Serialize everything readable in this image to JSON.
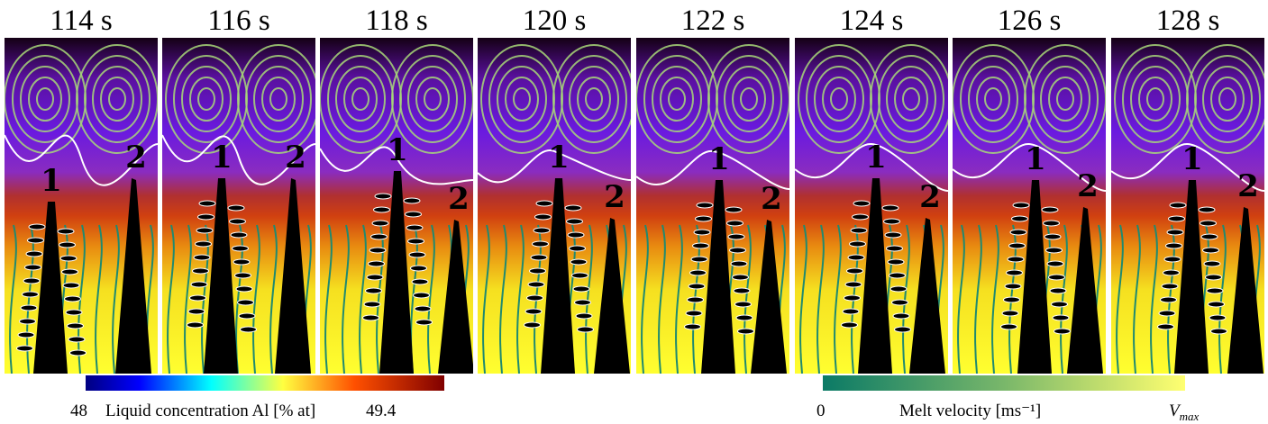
{
  "panels": [
    {
      "time": "114 s",
      "label1": "1",
      "label2": "2"
    },
    {
      "time": "116 s",
      "label1": "1",
      "label2": "2"
    },
    {
      "time": "118 s",
      "label1": "1",
      "label2": "2"
    },
    {
      "time": "120 s",
      "label1": "1",
      "label2": "2"
    },
    {
      "time": "122 s",
      "label1": "1",
      "label2": "2"
    },
    {
      "time": "124 s",
      "label1": "1",
      "label2": "2"
    },
    {
      "time": "126 s",
      "label1": "1",
      "label2": "2"
    },
    {
      "time": "128 s",
      "label1": "1",
      "label2": "2"
    }
  ],
  "colorbars": {
    "concentration": {
      "min": 48,
      "label": "Liquid concentration Al [% at]",
      "max": 49.4
    },
    "velocity": {
      "min": 0,
      "label": "Melt velocity [ms⁻¹]",
      "max_base": "V",
      "max_sub": "max"
    }
  }
}
